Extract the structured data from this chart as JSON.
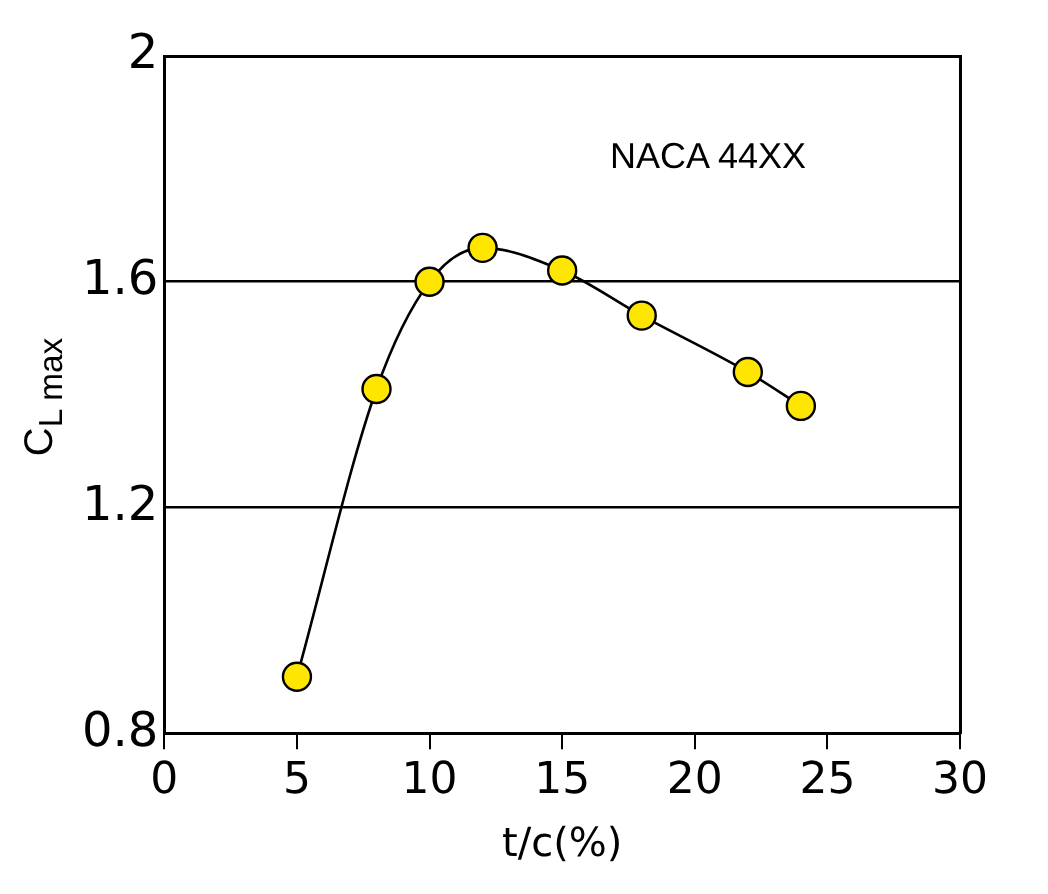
{
  "chart_data": {
    "type": "line",
    "xlabel": "t/c(%)",
    "ylabel": "C$_{L max}$",
    "annotations": [
      "NACA 44XX"
    ],
    "x": [
      5,
      8,
      10,
      12,
      15,
      18,
      22,
      24
    ],
    "series": [
      {
        "color": "#ffe600",
        "values": [
          0.9,
          1.41,
          1.6,
          1.66,
          1.62,
          1.54,
          1.44,
          1.38
        ]
      }
    ],
    "xlim": [
      0,
      30
    ],
    "xticks": [
      0,
      5,
      10,
      15,
      20,
      25,
      30
    ],
    "ylim": [
      0.8,
      2
    ],
    "yticks": [
      0.8,
      1.2,
      1.6,
      2
    ],
    "grid": "y",
    "legend": false,
    "marker": "circle",
    "line_style": "solid"
  }
}
